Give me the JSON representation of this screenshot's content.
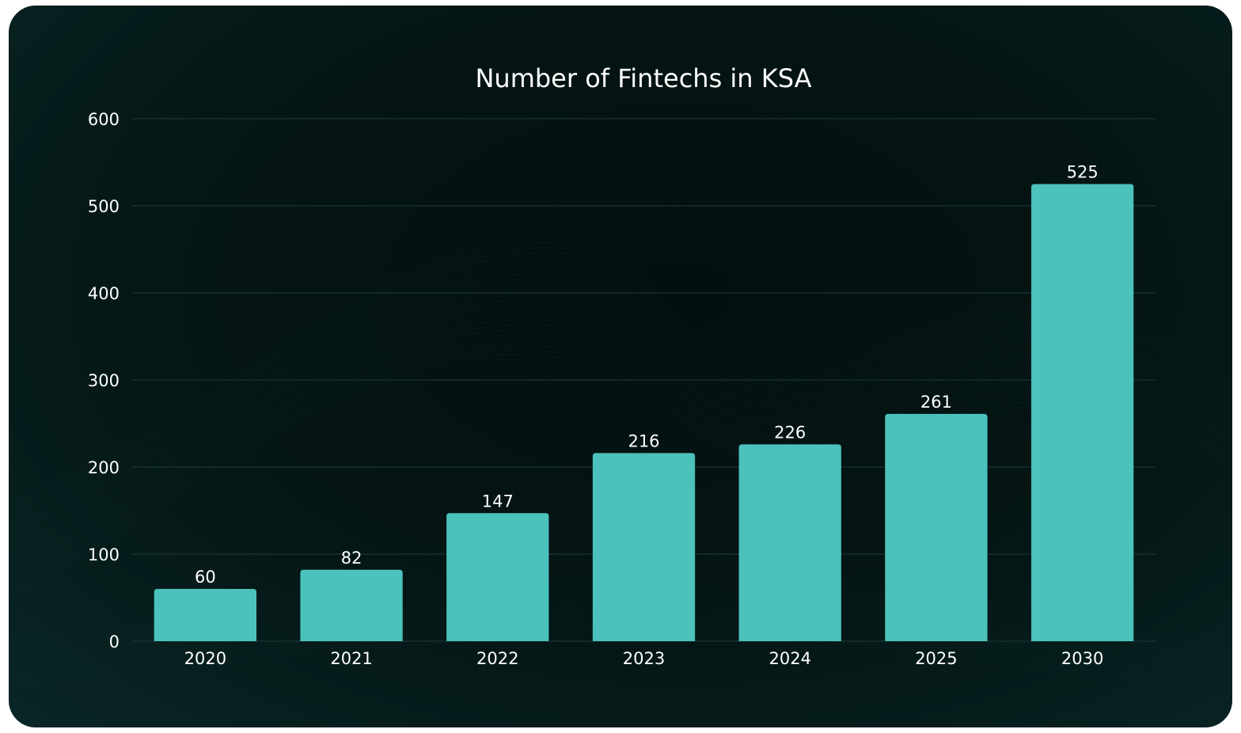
{
  "chart_data": {
    "type": "bar",
    "title": "Number of Fintechs in KSA",
    "categories": [
      "2020",
      "2021",
      "2022",
      "2023",
      "2024",
      "2025",
      "2030"
    ],
    "series": [
      {
        "values": [
          60,
          82,
          147,
          216,
          226,
          261,
          525
        ]
      }
    ],
    "xlabel": "",
    "ylabel": "",
    "ylim": [
      0,
      600
    ],
    "yticks": [
      0,
      100,
      200,
      300,
      400,
      500,
      600
    ],
    "grid": true,
    "legend": "none",
    "bar_color": "#4bc2bb",
    "background_color": "#041615",
    "text_color": "#ffffff"
  }
}
